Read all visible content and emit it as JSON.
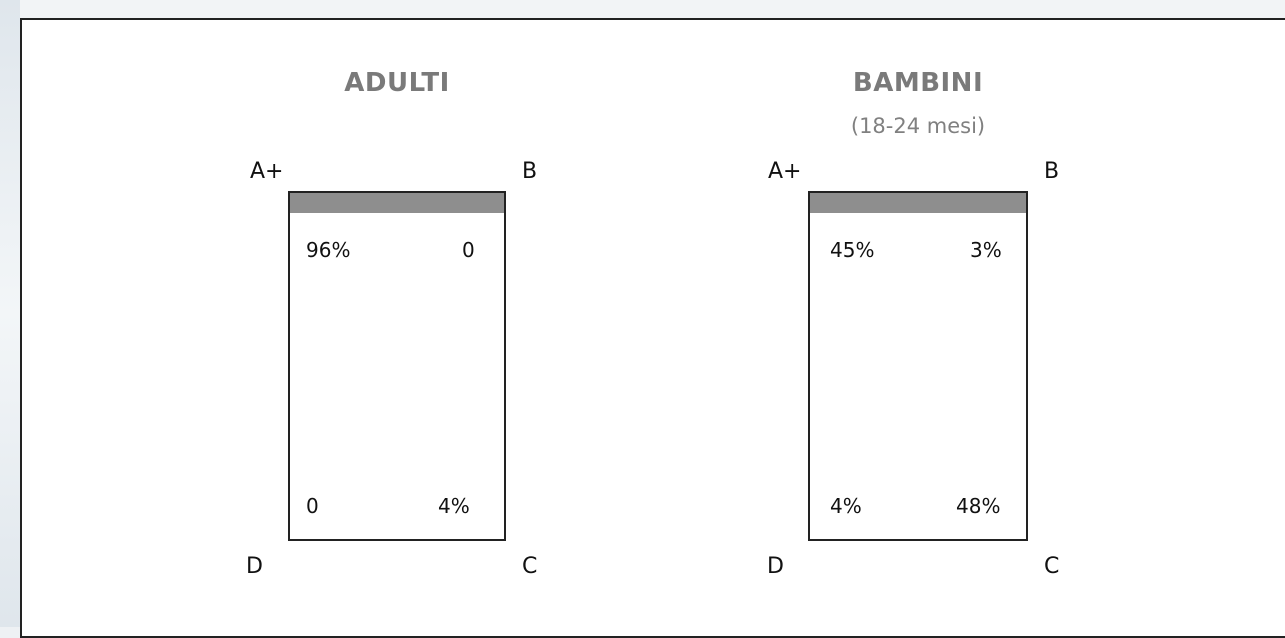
{
  "panels": [
    {
      "title": "ADULTI",
      "subtitle": "",
      "corners": {
        "top_left": "A+",
        "top_right": "B",
        "bottom_left": "D",
        "bottom_right": "C"
      },
      "values": {
        "top_left": "96%",
        "top_right": "0",
        "bottom_left": "0",
        "bottom_right": "4%"
      }
    },
    {
      "title": "BAMBINI",
      "subtitle": "(18-24 mesi)",
      "corners": {
        "top_left": "A+",
        "top_right": "B",
        "bottom_left": "D",
        "bottom_right": "C"
      },
      "values": {
        "top_left": "45%",
        "top_right": "3%",
        "bottom_left": "4%",
        "bottom_right": "48%"
      }
    }
  ],
  "colors": {
    "header_bar": "#8e8e8e",
    "title_text": "#7a7a7a",
    "border": "#222222"
  }
}
